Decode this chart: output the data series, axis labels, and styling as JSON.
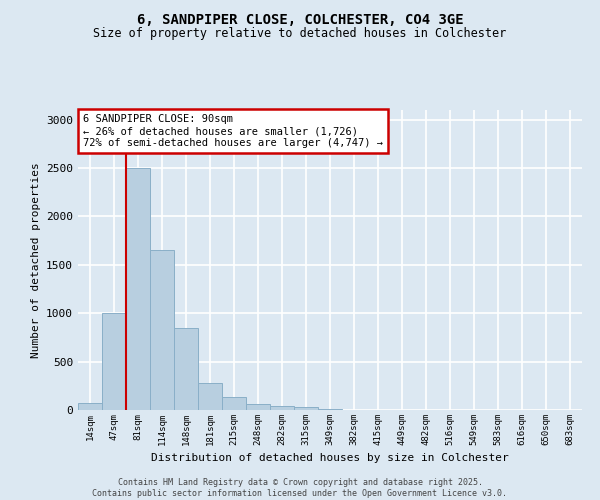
{
  "title1": "6, SANDPIPER CLOSE, COLCHESTER, CO4 3GE",
  "title2": "Size of property relative to detached houses in Colchester",
  "xlabel": "Distribution of detached houses by size in Colchester",
  "ylabel": "Number of detached properties",
  "bar_values": [
    75,
    1000,
    2500,
    1650,
    850,
    280,
    130,
    60,
    45,
    35,
    15,
    3,
    0,
    0,
    0,
    0,
    0,
    0,
    0,
    0,
    0
  ],
  "bar_labels": [
    "14sqm",
    "47sqm",
    "81sqm",
    "114sqm",
    "148sqm",
    "181sqm",
    "215sqm",
    "248sqm",
    "282sqm",
    "315sqm",
    "349sqm",
    "382sqm",
    "415sqm",
    "449sqm",
    "482sqm",
    "516sqm",
    "549sqm",
    "583sqm",
    "616sqm",
    "650sqm",
    "683sqm"
  ],
  "bar_color": "#b8cfe0",
  "bar_edge_color": "#8aafc8",
  "vline_color": "#cc0000",
  "annotation_text": "6 SANDPIPER CLOSE: 90sqm\n← 26% of detached houses are smaller (1,726)\n72% of semi-detached houses are larger (4,747) →",
  "annotation_box_color": "#cc0000",
  "annotation_fill": "white",
  "ylim": [
    0,
    3100
  ],
  "yticks": [
    0,
    500,
    1000,
    1500,
    2000,
    2500,
    3000
  ],
  "footer1": "Contains HM Land Registry data © Crown copyright and database right 2025.",
  "footer2": "Contains public sector information licensed under the Open Government Licence v3.0.",
  "bg_color": "#dce8f2",
  "grid_color": "white"
}
